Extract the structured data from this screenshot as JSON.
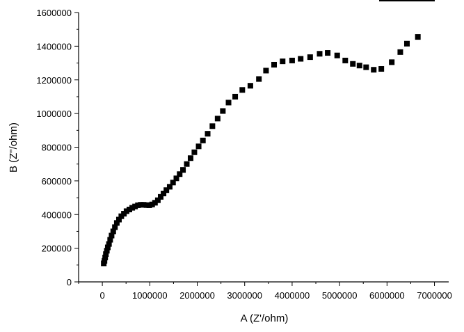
{
  "chart_data": {
    "type": "scatter",
    "title": "",
    "xlabel": "A (Z'/ohm)",
    "ylabel": "B (Z\"/ohm)",
    "xlim": [
      -500000,
      7300000
    ],
    "ylim": [
      0,
      1600000
    ],
    "x_ticks": [
      0,
      1000000,
      2000000,
      3000000,
      4000000,
      5000000,
      6000000,
      7000000
    ],
    "y_ticks": [
      0,
      200000,
      400000,
      600000,
      800000,
      1000000,
      1200000,
      1400000,
      1600000
    ],
    "x_tick_labels": [
      "0",
      "1000000",
      "2000000",
      "3000000",
      "4000000",
      "5000000",
      "6000000",
      "7000000"
    ],
    "y_tick_labels": [
      "0",
      "200000",
      "400000",
      "600000",
      "800000",
      "1000000",
      "1200000",
      "1400000",
      "1600000"
    ],
    "grid": false,
    "marker": "square",
    "marker_color": "#000000",
    "legend": "top-right",
    "series": [
      {
        "x": [
          30000,
          45000,
          60000,
          75000,
          95000,
          115000,
          140000,
          165000,
          195000,
          230000,
          265000,
          305000,
          350000,
          400000,
          455000,
          510000,
          570000,
          630000,
          690000,
          750000,
          810000,
          870000,
          930000,
          990000,
          1050000,
          1110000,
          1170000,
          1230000,
          1290000,
          1350000,
          1420000,
          1490000,
          1560000,
          1630000,
          1700000,
          1780000,
          1860000,
          1940000,
          2030000,
          2120000,
          2220000,
          2320000,
          2430000,
          2540000,
          2660000,
          2800000,
          2950000,
          3120000,
          3300000,
          3450000,
          3620000,
          3800000,
          4000000,
          4180000,
          4380000,
          4580000,
          4750000,
          4950000,
          5120000,
          5280000,
          5420000,
          5560000,
          5720000,
          5880000,
          6100000,
          6280000,
          6420000,
          6650000
        ],
        "y": [
          110000,
          125000,
          145000,
          165000,
          185000,
          205000,
          225000,
          250000,
          275000,
          300000,
          325000,
          350000,
          370000,
          390000,
          405000,
          420000,
          430000,
          440000,
          448000,
          455000,
          458000,
          458000,
          456000,
          455000,
          460000,
          470000,
          485000,
          505000,
          525000,
          545000,
          565000,
          590000,
          615000,
          640000,
          665000,
          700000,
          735000,
          770000,
          805000,
          840000,
          880000,
          925000,
          970000,
          1015000,
          1065000,
          1100000,
          1140000,
          1165000,
          1205000,
          1255000,
          1290000,
          1310000,
          1315000,
          1325000,
          1335000,
          1355000,
          1360000,
          1345000,
          1315000,
          1295000,
          1285000,
          1275000,
          1260000,
          1265000,
          1305000,
          1365000,
          1415000,
          1455000
        ]
      }
    ]
  }
}
